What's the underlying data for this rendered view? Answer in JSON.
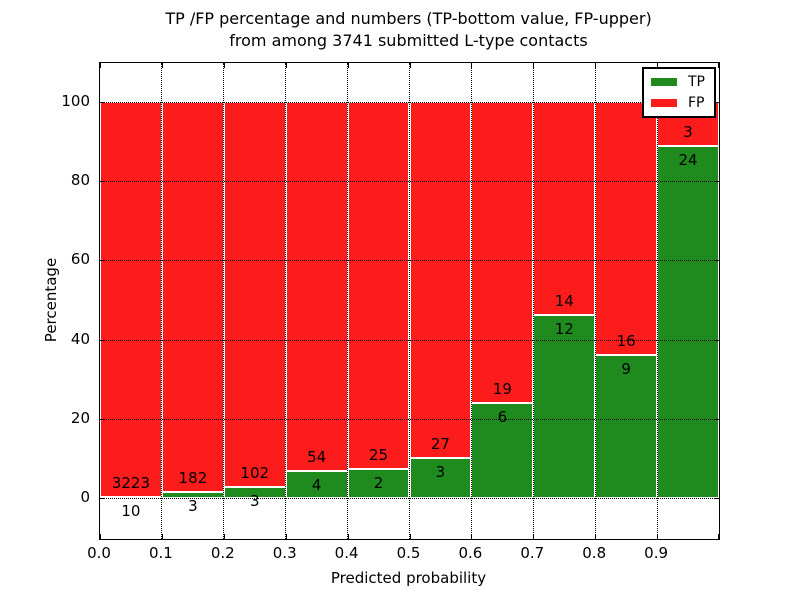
{
  "title": {
    "line1": "TP /FP percentage and numbers (TP-bottom value, FP-upper)",
    "line2": "from among 3741 submitted L-type contacts"
  },
  "axes": {
    "xlabel": "Predicted probability",
    "ylabel": "Percentage",
    "xtick_labels": [
      "0.0",
      "0.1",
      "0.2",
      "0.3",
      "0.4",
      "0.5",
      "0.6",
      "0.7",
      "0.8",
      "0.9"
    ],
    "ytick_values": [
      0,
      20,
      40,
      60,
      80,
      100
    ],
    "xlim": [
      0.0,
      1.0
    ],
    "ylim": [
      -10.4,
      109.9
    ],
    "grid_style": "dotted"
  },
  "legend": {
    "position": "upper right",
    "items": [
      {
        "label": "TP",
        "color": "#1f8b1f"
      },
      {
        "label": "FP",
        "color": "#fd1c1c"
      }
    ]
  },
  "colors": {
    "tp_green": "#1f8b1f",
    "fp_red": "#fd1c1c",
    "grid": "#000000",
    "background": "#ffffff"
  },
  "chart_data": {
    "type": "bar",
    "stacked": true,
    "normalized_to_percent": true,
    "bin_edges": [
      0.0,
      0.1,
      0.2,
      0.3,
      0.4,
      0.5,
      0.6,
      0.7,
      0.8,
      0.9,
      1.0
    ],
    "series": [
      {
        "name": "TP",
        "counts": [
          10,
          3,
          3,
          4,
          2,
          3,
          6,
          12,
          9,
          24
        ],
        "pct_of_bin": [
          0.3,
          1.6,
          2.9,
          6.9,
          7.4,
          10.0,
          24.0,
          46.2,
          36.0,
          88.9
        ]
      },
      {
        "name": "FP",
        "counts": [
          3223,
          182,
          102,
          54,
          25,
          27,
          19,
          14,
          16,
          3
        ],
        "pct_of_bin": [
          99.7,
          98.4,
          97.1,
          93.1,
          92.6,
          90.0,
          76.0,
          53.8,
          64.0,
          11.1
        ]
      }
    ],
    "total_submitted": 3741,
    "title": "TP /FP percentage and numbers (TP-bottom value, FP-upper) from among 3741 submitted L-type contacts",
    "xlabel": "Predicted probability",
    "ylabel": "Percentage"
  }
}
